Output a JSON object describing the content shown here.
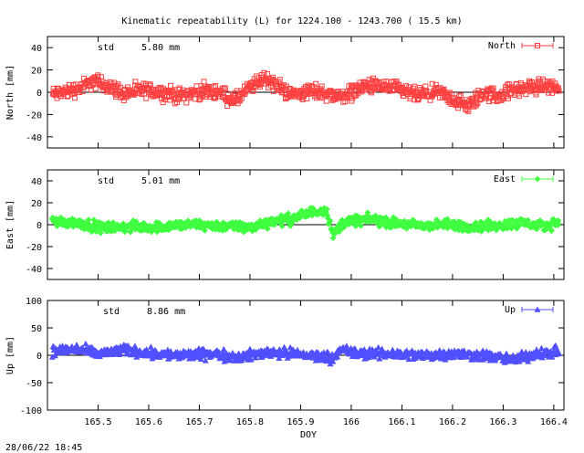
{
  "title": "Kinematic repeatability (L) for 1224.100 - 1243.700  ( 15.5 km)",
  "footer_timestamp": "28/06/22 18:45",
  "chart_data": [
    {
      "type": "scatter",
      "series_name": "North",
      "color": "#ff4040",
      "marker": "square",
      "ylabel": "North [mm]",
      "ylim": [
        -50,
        50
      ],
      "yticks": [
        -40,
        -20,
        0,
        20,
        40
      ],
      "std_label": "std",
      "std_value": "5.80 mm",
      "segments": [
        {
          "x": [
            165.41,
            165.46,
            165.49,
            165.52,
            165.55,
            165.6,
            165.66,
            165.71,
            165.74,
            165.77,
            165.8,
            165.83,
            165.88,
            165.93,
            165.98,
            166.03,
            166.08,
            166.13,
            166.17,
            166.2,
            166.23,
            166.26,
            166.29,
            166.32,
            166.35,
            166.38,
            166.41
          ],
          "y": [
            -2,
            3,
            10,
            6,
            -1,
            2,
            -3,
            1,
            0,
            -8,
            4,
            13,
            -2,
            1,
            -4,
            6,
            4,
            -3,
            0,
            -6,
            -13,
            -1,
            -3,
            2,
            4,
            6,
            4
          ]
        }
      ],
      "noise": 5
    },
    {
      "type": "scatter",
      "series_name": "East",
      "color": "#40ff40",
      "marker": "diamond",
      "ylabel": "East [mm]",
      "ylim": [
        -50,
        50
      ],
      "yticks": [
        -40,
        -20,
        0,
        20,
        40
      ],
      "std_label": "std",
      "std_value": "5.01 mm",
      "segments": [
        {
          "x": [
            165.41,
            165.46,
            165.51,
            165.56,
            165.62,
            165.68,
            165.74,
            165.8,
            165.84,
            165.88,
            165.92,
            165.95,
            165.965,
            165.975,
            165.99,
            166.04,
            166.09,
            166.14,
            166.19,
            166.24,
            166.29,
            166.34,
            166.38,
            166.41
          ],
          "y": [
            3,
            2,
            -3,
            -2,
            -2,
            0,
            -1,
            -3,
            3,
            5,
            11,
            14,
            -10,
            -2,
            3,
            5,
            1,
            -1,
            0,
            -2,
            -1,
            2,
            -2,
            3
          ]
        }
      ],
      "noise": 3.5
    },
    {
      "type": "scatter",
      "series_name": "Up",
      "color": "#5050ff",
      "marker": "triangle",
      "ylabel": "Up [mm]",
      "ylim": [
        -100,
        100
      ],
      "yticks": [
        -100,
        -50,
        0,
        50,
        100
      ],
      "std_label": "std",
      "std_value": "8.86 mm",
      "segments": [
        {
          "x": [
            165.41,
            165.46,
            165.5,
            165.55,
            165.6,
            165.66,
            165.72,
            165.78,
            165.84,
            165.9,
            165.96,
            165.98,
            166.02,
            166.08,
            166.14,
            166.2,
            166.26,
            166.32,
            166.36,
            166.41
          ],
          "y": [
            8,
            12,
            2,
            10,
            4,
            0,
            3,
            -3,
            6,
            2,
            -4,
            9,
            3,
            3,
            0,
            3,
            0,
            -8,
            2,
            6
          ]
        }
      ],
      "noise": 7
    }
  ],
  "x_axis": {
    "label": "DOY",
    "xlim": [
      165.4,
      166.42
    ],
    "ticks": [
      165.5,
      165.6,
      165.7,
      165.8,
      165.9,
      166,
      166.1,
      166.2,
      166.3,
      166.4
    ],
    "tick_labels": [
      "165.5",
      "165.6",
      "165.7",
      "165.8",
      "165.9",
      "166",
      "166.1",
      "166.2",
      "166.3",
      "166.4"
    ]
  }
}
